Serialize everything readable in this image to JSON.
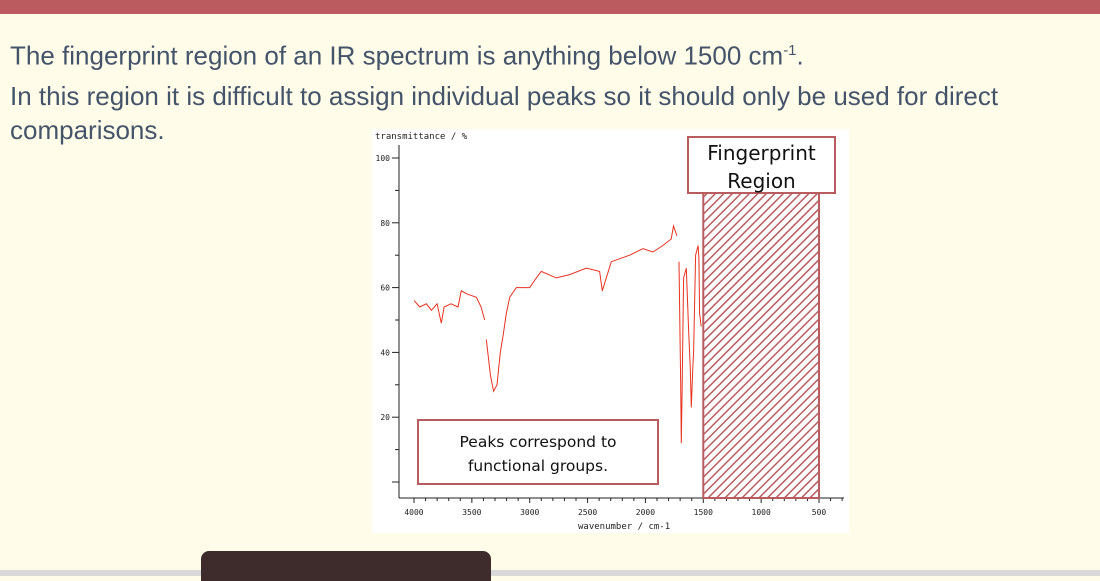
{
  "slide": {
    "line1_text": "The fingerprint region of an IR spectrum is anything below 1500 cm",
    "line1_sup": "-1",
    "line1_end": ".",
    "line2_text": "In this region it is difficult to assign individual peaks so it should only be used for direct comparisons.",
    "fingerprint_label": "Fingerprint Region",
    "peaks_label_1": "Peaks correspond to",
    "peaks_label_2": "functional groups.",
    "colors": {
      "header": "#bc5b5f",
      "background": "#fffdea",
      "text": "#44546a",
      "spectrum": "#e8321e",
      "hatch": "#b85c60"
    }
  },
  "chart_data": {
    "type": "line",
    "ylabel": "transmittance / %",
    "xlabel": "wavenumber / cm-1",
    "xlim": [
      4000,
      500
    ],
    "ylim": [
      0,
      100
    ],
    "x_reversed": true,
    "xticks": [
      4000,
      3500,
      3000,
      2500,
      2000,
      1500,
      1000,
      500
    ],
    "yticks": [
      100,
      80,
      60,
      40,
      20
    ],
    "shaded_region": {
      "from": 1500,
      "to": 500,
      "pattern": "diagonal-hatch"
    },
    "segments": [
      [
        [
          4000,
          56
        ],
        [
          3950,
          54
        ],
        [
          3893,
          55
        ],
        [
          3850,
          53
        ],
        [
          3800,
          55
        ],
        [
          3764,
          49
        ],
        [
          3740,
          54
        ],
        [
          3680,
          55
        ],
        [
          3620,
          54
        ],
        [
          3591,
          59
        ],
        [
          3540,
          58
        ],
        [
          3461,
          57
        ],
        [
          3420,
          54
        ],
        [
          3389,
          50
        ]
      ],
      [
        [
          3375,
          44
        ],
        [
          3340,
          33
        ],
        [
          3312,
          28
        ],
        [
          3283,
          30
        ],
        [
          3254,
          40
        ],
        [
          3231,
          45
        ],
        [
          3202,
          52
        ],
        [
          3173,
          57
        ],
        [
          3116,
          60
        ],
        [
          3000,
          60
        ],
        [
          2943,
          63
        ],
        [
          2900,
          65
        ],
        [
          2770,
          63
        ],
        [
          2655,
          64
        ],
        [
          2511,
          66
        ],
        [
          2396,
          65
        ],
        [
          2373,
          59
        ],
        [
          2338,
          63
        ],
        [
          2295,
          68
        ],
        [
          2137,
          70
        ],
        [
          2022,
          72
        ],
        [
          1935,
          71
        ],
        [
          1849,
          73
        ],
        [
          1777,
          75
        ],
        [
          1757,
          79
        ],
        [
          1728,
          76
        ]
      ],
      [
        [
          1710,
          68
        ],
        [
          1695,
          30
        ],
        [
          1690,
          12
        ],
        [
          1683,
          28
        ],
        [
          1670,
          63
        ],
        [
          1647,
          66
        ],
        [
          1627,
          47
        ],
        [
          1612,
          35
        ],
        [
          1604,
          23
        ],
        [
          1590,
          36
        ],
        [
          1584,
          40
        ],
        [
          1566,
          70
        ],
        [
          1545,
          73
        ],
        [
          1538,
          69
        ],
        [
          1532,
          52
        ],
        [
          1518,
          48
        ]
      ]
    ]
  }
}
